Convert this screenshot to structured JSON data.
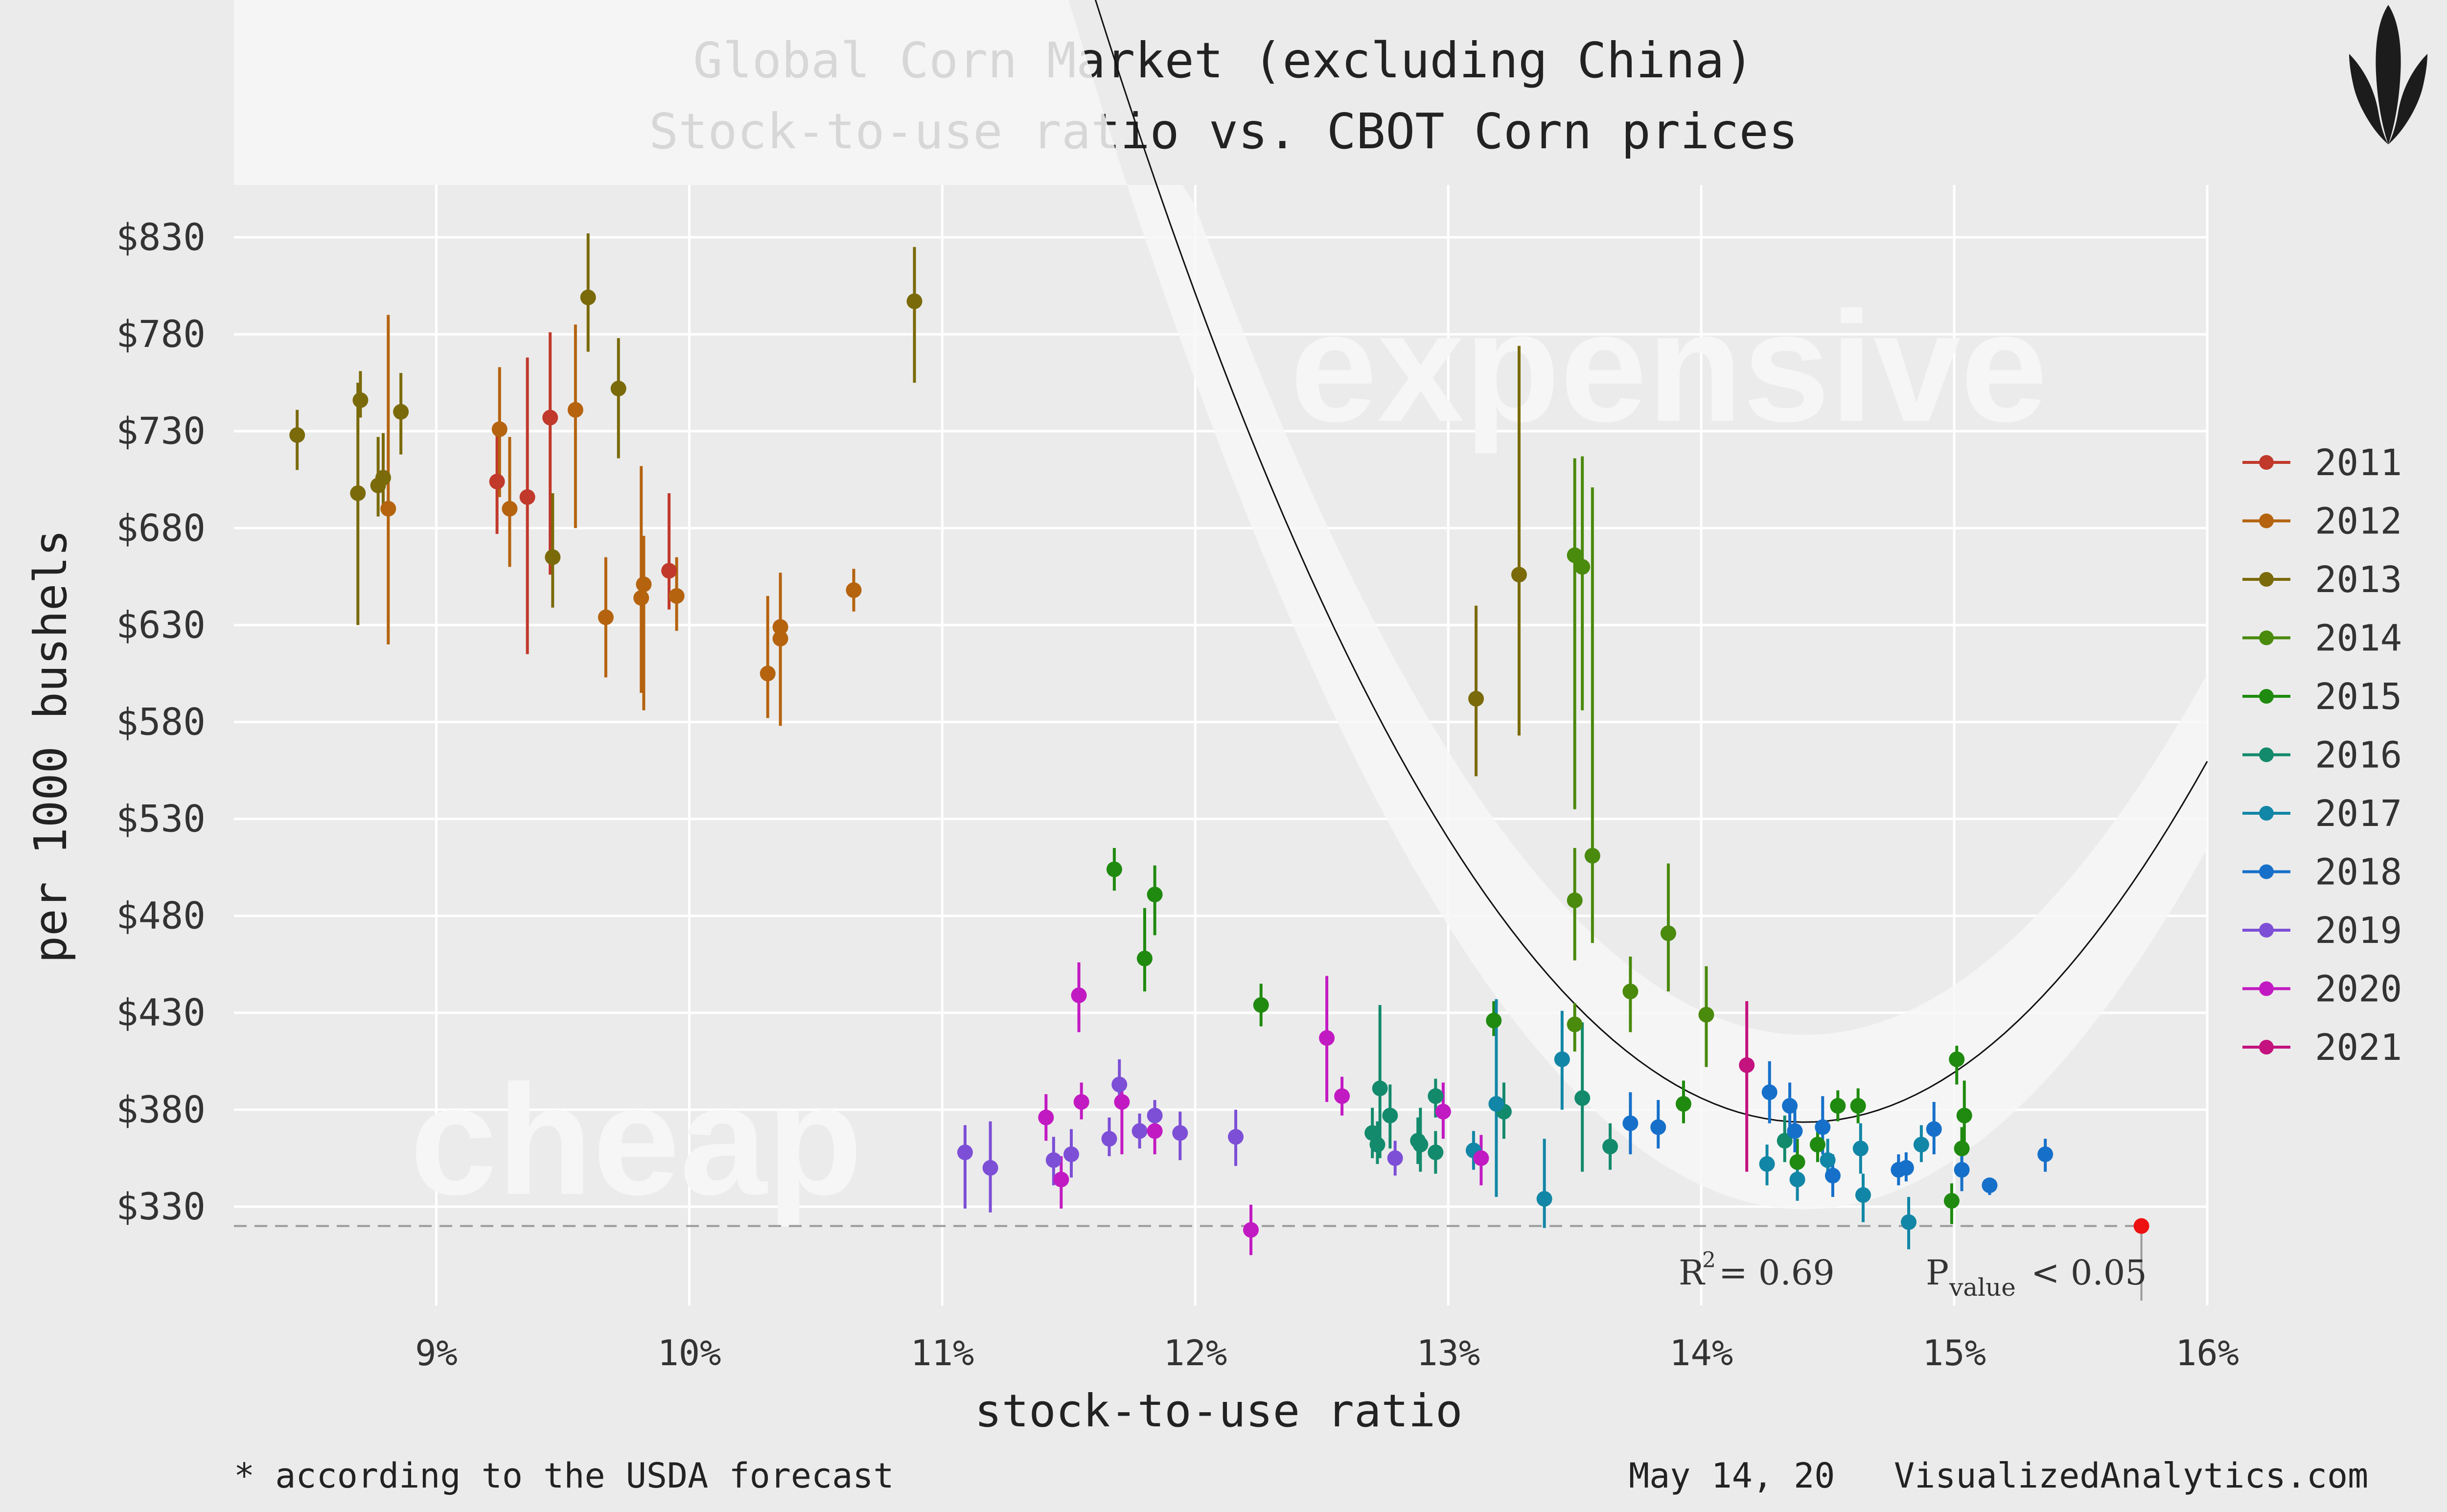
{
  "header": {
    "title_line1": "Global Corn Market (excluding China)",
    "title_line2": "Stock-to-use ratio vs. CBOT Corn prices"
  },
  "footer": {
    "note": "* according to the USDA forecast",
    "date": "May 14, 20",
    "site": "VisualizedAnalytics.com"
  },
  "colors": {
    "background": "#ebebeb",
    "panel": "#ebebeb",
    "grid": "#ffffff",
    "band": "#f5f5f5",
    "fit_line": "#111111",
    "forecast_point": "#ee1111",
    "forecast_line": "#999999",
    "watermark": "#f6f6f6"
  },
  "logo_icon": "corn-icon",
  "chart_data": {
    "type": "scatter",
    "title": "Global Corn Market (excluding China)",
    "subtitle": "Stock-to-use ratio vs. CBOT Corn prices",
    "xlabel": "stock-to-use ratio",
    "ylabel": "per 1000 bushels",
    "xlim": [
      8.2,
      16.0
    ],
    "ylim": [
      279,
      857
    ],
    "x_ticks": [
      9,
      10,
      11,
      12,
      13,
      14,
      15,
      16
    ],
    "x_tick_labels": [
      "9%",
      "10%",
      "11%",
      "12%",
      "13%",
      "14%",
      "15%",
      "16%"
    ],
    "y_ticks": [
      330,
      380,
      430,
      480,
      530,
      580,
      630,
      680,
      730,
      780,
      830
    ],
    "y_tick_labels": [
      "$330",
      "$380",
      "$430",
      "$480",
      "$530",
      "$580",
      "$630",
      "$680",
      "$730",
      "$780",
      "$830"
    ],
    "grid": true,
    "legend_position": "right",
    "annotations": {
      "expensive": "expensive",
      "cheap": "cheap"
    },
    "stats": {
      "r2_label": "R",
      "r2_sup": "2",
      "r2_value": "= 0.69",
      "p_label": "P",
      "p_sub": "value",
      "p_value": "< 0.05"
    },
    "fit_curve": {
      "a": 0.59876,
      "b": 21.59,
      "c": 373.6,
      "vertex_x": 14.41,
      "band_halfwidth": 45
    },
    "forecast": {
      "x": 15.74,
      "y": 320,
      "line_y": 320
    },
    "series": [
      {
        "name": "2011",
        "color": "#c0392b",
        "points": [
          {
            "x": 9.24,
            "y": 704,
            "lo": 677,
            "hi": 733
          },
          {
            "x": 9.36,
            "y": 696,
            "lo": 615,
            "hi": 768
          },
          {
            "x": 9.45,
            "y": 737,
            "lo": 656,
            "hi": 781
          },
          {
            "x": 9.92,
            "y": 658,
            "lo": 638,
            "hi": 698
          }
        ]
      },
      {
        "name": "2012",
        "color": "#b5630f",
        "points": [
          {
            "x": 8.81,
            "y": 690,
            "lo": 620,
            "hi": 790
          },
          {
            "x": 9.25,
            "y": 731,
            "lo": 696,
            "hi": 763
          },
          {
            "x": 9.29,
            "y": 690,
            "lo": 660,
            "hi": 727
          },
          {
            "x": 9.55,
            "y": 741,
            "lo": 680,
            "hi": 785
          },
          {
            "x": 9.67,
            "y": 634,
            "lo": 603,
            "hi": 665
          },
          {
            "x": 9.81,
            "y": 644,
            "lo": 595,
            "hi": 712
          },
          {
            "x": 9.82,
            "y": 651,
            "lo": 586,
            "hi": 676
          },
          {
            "x": 9.95,
            "y": 645,
            "lo": 627,
            "hi": 665
          },
          {
            "x": 10.31,
            "y": 605,
            "lo": 582,
            "hi": 645
          },
          {
            "x": 10.36,
            "y": 629,
            "lo": 578,
            "hi": 657
          },
          {
            "x": 10.36,
            "y": 623,
            "lo": 590,
            "hi": 650
          },
          {
            "x": 10.65,
            "y": 648,
            "lo": 637,
            "hi": 659
          }
        ]
      },
      {
        "name": "2013",
        "color": "#7a6a0a",
        "points": [
          {
            "x": 8.45,
            "y": 728,
            "lo": 710,
            "hi": 741
          },
          {
            "x": 8.69,
            "y": 698,
            "lo": 630,
            "hi": 755
          },
          {
            "x": 8.7,
            "y": 746,
            "lo": 737,
            "hi": 761
          },
          {
            "x": 8.77,
            "y": 702,
            "lo": 686,
            "hi": 727
          },
          {
            "x": 8.79,
            "y": 706,
            "lo": 688,
            "hi": 729
          },
          {
            "x": 8.86,
            "y": 740,
            "lo": 718,
            "hi": 760
          },
          {
            "x": 9.46,
            "y": 665,
            "lo": 639,
            "hi": 698
          },
          {
            "x": 9.6,
            "y": 799,
            "lo": 771,
            "hi": 832
          },
          {
            "x": 9.72,
            "y": 752,
            "lo": 716,
            "hi": 778
          },
          {
            "x": 10.89,
            "y": 797,
            "lo": 755,
            "hi": 825
          },
          {
            "x": 13.11,
            "y": 592,
            "lo": 552,
            "hi": 640
          },
          {
            "x": 13.28,
            "y": 656,
            "lo": 573,
            "hi": 774
          }
        ]
      },
      {
        "name": "2014",
        "color": "#4a8a0c",
        "points": [
          {
            "x": 13.5,
            "y": 666,
            "lo": 535,
            "hi": 716
          },
          {
            "x": 13.53,
            "y": 660,
            "lo": 586,
            "hi": 717
          },
          {
            "x": 13.57,
            "y": 511,
            "lo": 466,
            "hi": 701
          },
          {
            "x": 13.5,
            "y": 488,
            "lo": 457,
            "hi": 515
          },
          {
            "x": 13.5,
            "y": 424,
            "lo": 410,
            "hi": 435
          },
          {
            "x": 13.72,
            "y": 441,
            "lo": 420,
            "hi": 459
          },
          {
            "x": 13.87,
            "y": 471,
            "lo": 441,
            "hi": 507
          },
          {
            "x": 14.02,
            "y": 429,
            "lo": 402,
            "hi": 454
          }
        ]
      },
      {
        "name": "2015",
        "color": "#1f8a0f",
        "points": [
          {
            "x": 11.68,
            "y": 504,
            "lo": 493,
            "hi": 515
          },
          {
            "x": 11.8,
            "y": 458,
            "lo": 441,
            "hi": 484
          },
          {
            "x": 11.84,
            "y": 491,
            "lo": 470,
            "hi": 506
          },
          {
            "x": 12.26,
            "y": 434,
            "lo": 423,
            "hi": 445
          },
          {
            "x": 13.18,
            "y": 426,
            "lo": 418,
            "hi": 436
          },
          {
            "x": 13.93,
            "y": 383,
            "lo": 373,
            "hi": 395
          },
          {
            "x": 14.38,
            "y": 353,
            "lo": 341,
            "hi": 365
          },
          {
            "x": 14.46,
            "y": 362,
            "lo": 353,
            "hi": 373
          },
          {
            "x": 14.54,
            "y": 382,
            "lo": 374,
            "hi": 390
          },
          {
            "x": 14.62,
            "y": 382,
            "lo": 373,
            "hi": 391
          },
          {
            "x": 14.99,
            "y": 333,
            "lo": 321,
            "hi": 342
          },
          {
            "x": 15.01,
            "y": 406,
            "lo": 393,
            "hi": 413
          },
          {
            "x": 15.03,
            "y": 360,
            "lo": 349,
            "hi": 371
          },
          {
            "x": 15.04,
            "y": 377,
            "lo": 360,
            "hi": 395
          }
        ]
      },
      {
        "name": "2016",
        "color": "#138a6c",
        "points": [
          {
            "x": 12.7,
            "y": 368,
            "lo": 355,
            "hi": 381
          },
          {
            "x": 12.72,
            "y": 362,
            "lo": 352,
            "hi": 374
          },
          {
            "x": 12.73,
            "y": 391,
            "lo": 355,
            "hi": 434
          },
          {
            "x": 12.77,
            "y": 377,
            "lo": 360,
            "hi": 393
          },
          {
            "x": 12.88,
            "y": 364,
            "lo": 352,
            "hi": 376
          },
          {
            "x": 12.89,
            "y": 362,
            "lo": 348,
            "hi": 381
          },
          {
            "x": 12.95,
            "y": 358,
            "lo": 347,
            "hi": 369
          },
          {
            "x": 12.95,
            "y": 387,
            "lo": 376,
            "hi": 396
          },
          {
            "x": 13.22,
            "y": 379,
            "lo": 365,
            "hi": 394
          },
          {
            "x": 13.53,
            "y": 386,
            "lo": 348,
            "hi": 425
          },
          {
            "x": 13.64,
            "y": 361,
            "lo": 349,
            "hi": 373
          },
          {
            "x": 14.33,
            "y": 364,
            "lo": 353,
            "hi": 377
          }
        ]
      },
      {
        "name": "2017",
        "color": "#1286a6",
        "points": [
          {
            "x": 13.1,
            "y": 359,
            "lo": 349,
            "hi": 369
          },
          {
            "x": 13.19,
            "y": 383,
            "lo": 335,
            "hi": 437
          },
          {
            "x": 13.38,
            "y": 334,
            "lo": 319,
            "hi": 365
          },
          {
            "x": 13.45,
            "y": 406,
            "lo": 380,
            "hi": 431
          },
          {
            "x": 14.26,
            "y": 352,
            "lo": 341,
            "hi": 362
          },
          {
            "x": 14.38,
            "y": 344,
            "lo": 333,
            "hi": 355
          },
          {
            "x": 14.5,
            "y": 354,
            "lo": 344,
            "hi": 365
          },
          {
            "x": 14.63,
            "y": 360,
            "lo": 347,
            "hi": 373
          },
          {
            "x": 14.64,
            "y": 336,
            "lo": 322,
            "hi": 347
          },
          {
            "x": 14.82,
            "y": 322,
            "lo": 308,
            "hi": 335
          },
          {
            "x": 14.87,
            "y": 362,
            "lo": 353,
            "hi": 372
          }
        ]
      },
      {
        "name": "2018",
        "color": "#1670c9",
        "points": [
          {
            "x": 13.72,
            "y": 373,
            "lo": 357,
            "hi": 389
          },
          {
            "x": 13.83,
            "y": 371,
            "lo": 360,
            "hi": 385
          },
          {
            "x": 14.27,
            "y": 389,
            "lo": 373,
            "hi": 405
          },
          {
            "x": 14.35,
            "y": 382,
            "lo": 370,
            "hi": 394
          },
          {
            "x": 14.37,
            "y": 369,
            "lo": 358,
            "hi": 381
          },
          {
            "x": 14.48,
            "y": 371,
            "lo": 357,
            "hi": 387
          },
          {
            "x": 14.52,
            "y": 346,
            "lo": 335,
            "hi": 357
          },
          {
            "x": 14.78,
            "y": 349,
            "lo": 341,
            "hi": 357
          },
          {
            "x": 14.81,
            "y": 350,
            "lo": 343,
            "hi": 358
          },
          {
            "x": 14.92,
            "y": 370,
            "lo": 357,
            "hi": 384
          },
          {
            "x": 15.03,
            "y": 349,
            "lo": 338,
            "hi": 362
          },
          {
            "x": 15.14,
            "y": 341,
            "lo": 336,
            "hi": 345
          },
          {
            "x": 15.36,
            "y": 357,
            "lo": 348,
            "hi": 365
          }
        ]
      },
      {
        "name": "2019",
        "color": "#7d4fd6",
        "points": [
          {
            "x": 11.09,
            "y": 358,
            "lo": 329,
            "hi": 372
          },
          {
            "x": 11.19,
            "y": 350,
            "lo": 327,
            "hi": 374
          },
          {
            "x": 11.44,
            "y": 354,
            "lo": 341,
            "hi": 366
          },
          {
            "x": 11.51,
            "y": 357,
            "lo": 345,
            "hi": 370
          },
          {
            "x": 11.66,
            "y": 365,
            "lo": 356,
            "hi": 376
          },
          {
            "x": 11.7,
            "y": 393,
            "lo": 381,
            "hi": 406
          },
          {
            "x": 11.78,
            "y": 369,
            "lo": 360,
            "hi": 378
          },
          {
            "x": 11.84,
            "y": 377,
            "lo": 370,
            "hi": 385
          },
          {
            "x": 11.94,
            "y": 368,
            "lo": 354,
            "hi": 379
          },
          {
            "x": 12.16,
            "y": 366,
            "lo": 351,
            "hi": 380
          },
          {
            "x": 12.79,
            "y": 355,
            "lo": 346,
            "hi": 364
          }
        ]
      },
      {
        "name": "2020",
        "color": "#c21ac2",
        "points": [
          {
            "x": 11.41,
            "y": 376,
            "lo": 364,
            "hi": 388
          },
          {
            "x": 11.47,
            "y": 344,
            "lo": 329,
            "hi": 356
          },
          {
            "x": 11.54,
            "y": 439,
            "lo": 420,
            "hi": 456
          },
          {
            "x": 11.55,
            "y": 384,
            "lo": 375,
            "hi": 394
          },
          {
            "x": 11.71,
            "y": 384,
            "lo": 357,
            "hi": 396
          },
          {
            "x": 11.84,
            "y": 369,
            "lo": 357,
            "hi": 378
          },
          {
            "x": 12.22,
            "y": 318,
            "lo": 305,
            "hi": 331
          },
          {
            "x": 12.52,
            "y": 417,
            "lo": 384,
            "hi": 449
          },
          {
            "x": 12.58,
            "y": 387,
            "lo": 377,
            "hi": 397
          },
          {
            "x": 12.98,
            "y": 379,
            "lo": 365,
            "hi": 394
          },
          {
            "x": 13.13,
            "y": 355,
            "lo": 341,
            "hi": 367
          }
        ]
      },
      {
        "name": "2021",
        "color": "#c4127e",
        "points": [
          {
            "x": 14.18,
            "y": 403,
            "lo": 348,
            "hi": 436
          }
        ]
      }
    ]
  }
}
